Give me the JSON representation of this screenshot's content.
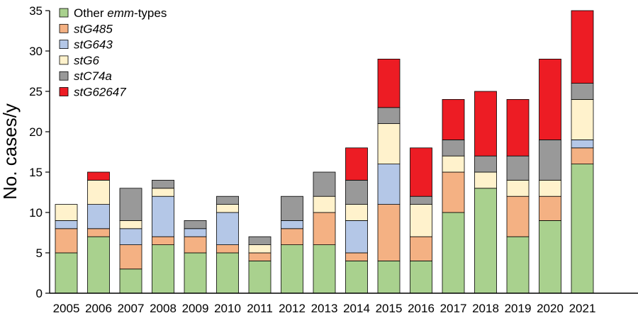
{
  "chart_data": {
    "type": "bar",
    "stacked": true,
    "title": "",
    "xlabel": "",
    "ylabel": "No. cases/y",
    "ylim": [
      0,
      35
    ],
    "yticks": [
      0,
      5,
      10,
      15,
      20,
      25,
      30,
      35
    ],
    "grid": false,
    "legend_position": "top-left",
    "categories": [
      "2005",
      "2006",
      "2007",
      "2008",
      "2009",
      "2010",
      "2011",
      "2012",
      "2013",
      "2014",
      "2015",
      "2016",
      "2017",
      "2018",
      "2019",
      "2020",
      "2021"
    ],
    "series": [
      {
        "name": "Other emm-types",
        "legend_parts": [
          {
            "text": "Other ",
            "italic": false
          },
          {
            "text": "emm",
            "italic": true
          },
          {
            "text": "-types",
            "italic": false
          }
        ],
        "color": "#a9d18e",
        "values": [
          5,
          7,
          3,
          6,
          5,
          5,
          4,
          6,
          6,
          4,
          4,
          4,
          10,
          13,
          7,
          9,
          16
        ]
      },
      {
        "name": "stG485",
        "legend_parts": [
          {
            "text": "stG485",
            "italic": true
          }
        ],
        "color": "#f4b183",
        "values": [
          3,
          1,
          3,
          1,
          2,
          1,
          1,
          2,
          4,
          1,
          7,
          3,
          5,
          0,
          5,
          3,
          2
        ]
      },
      {
        "name": "stG643",
        "legend_parts": [
          {
            "text": "stG643",
            "italic": true
          }
        ],
        "color": "#b4c7e7",
        "values": [
          1,
          3,
          2,
          5,
          1,
          4,
          0,
          1,
          0,
          4,
          5,
          0,
          0,
          0,
          0,
          0,
          1
        ]
      },
      {
        "name": "stG6",
        "legend_parts": [
          {
            "text": "stG6",
            "italic": true
          }
        ],
        "color": "#fff2cc",
        "values": [
          2,
          3,
          1,
          1,
          0,
          1,
          1,
          0,
          2,
          2,
          5,
          4,
          2,
          2,
          2,
          2,
          5
        ]
      },
      {
        "name": "stC74a",
        "legend_parts": [
          {
            "text": "stC74a",
            "italic": true
          }
        ],
        "color": "#999999",
        "values": [
          0,
          0,
          4,
          1,
          1,
          1,
          1,
          3,
          3,
          3,
          2,
          1,
          2,
          2,
          3,
          5,
          2
        ]
      },
      {
        "name": "stG62647",
        "legend_parts": [
          {
            "text": "stG62647",
            "italic": true
          }
        ],
        "color": "#ed1c24",
        "values": [
          0,
          1,
          0,
          0,
          0,
          0,
          0,
          0,
          0,
          4,
          6,
          6,
          5,
          8,
          7,
          10,
          9
        ]
      }
    ]
  }
}
